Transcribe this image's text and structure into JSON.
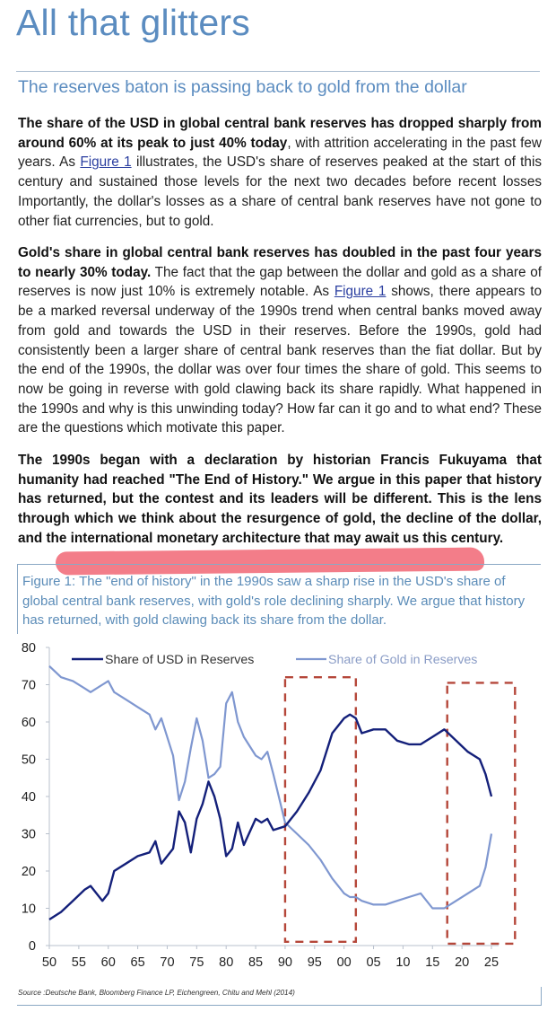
{
  "document": {
    "title": "All that glitters",
    "subtitle": "The reserves baton is passing back to gold from the dollar",
    "paragraphs": [
      {
        "bold_lead": "The share of the USD in global central bank reserves has dropped sharply from around 60% at its peak to just 40% today",
        "text_before_link": ", with attrition accelerating in the past few years. As ",
        "link": "Figure 1",
        "text_after_link": " illustrates, the USD's share of reserves peaked at the start of this century and sustained those levels for the next two decades before recent losses Importantly, the dollar's losses as a share of central bank reserves have not gone to other fiat currencies, but to gold."
      },
      {
        "bold_lead": "Gold's share in global central bank reserves has doubled in the past four years to nearly 30% today.",
        "text_before_link": " The fact that the gap between the dollar and gold as a share of reserves is now just 10% is extremely notable. As ",
        "link": "Figure 1",
        "text_after_link": " shows, there appears to be a marked reversal underway of the 1990s trend when central banks moved away from gold and towards the USD in their reserves. Before the 1990s, gold had consistently been a larger share of central bank reserves than the fiat dollar. But by the end of the 1990s, the dollar was over four times the share of gold. This seems to now be going in reverse with gold clawing back its share rapidly. What happened in the 1990s and why is this unwinding today? How far can it go and to what end? These are the questions which motivate this paper."
      },
      {
        "bold_text": "The 1990s began with a declaration by historian Francis Fukuyama that humanity had reached \"The End of History.\" We argue in this paper that history has returned, but the contest and its leaders will be different. This is the lens through which we think about the resurgence of gold, the decline of the dollar, and the international monetary architecture that may await us this century."
      }
    ],
    "figure_caption": "Figure 1: The \"end of history\" in the 1990s saw a sharp rise in the USD's share of global central bank reserves, with gold's role declining sharply. We argue that history has returned, with gold clawing back its share from the dollar.",
    "source": "Source :Deutsche Bank, Bloomberg Finance LP, Eichengreen, Chitu and Mehl (2014)",
    "colors": {
      "title_blue": "#5b8cc0",
      "usd_line": "#14207a",
      "gold_line": "#7f97d0",
      "dashed_box": "#b5473a",
      "highlight": "#f0606f"
    }
  },
  "chart_data": {
    "type": "line",
    "title": "",
    "xlabel": "",
    "ylabel": "",
    "ylim": [
      0,
      80
    ],
    "xlim": [
      1950,
      2025
    ],
    "y_ticks": [
      "0",
      "10",
      "20",
      "30",
      "40",
      "50",
      "60",
      "70",
      "80"
    ],
    "x_ticks": [
      "50",
      "55",
      "60",
      "65",
      "70",
      "75",
      "80",
      "85",
      "90",
      "95",
      "00",
      "05",
      "10",
      "15",
      "20",
      "25"
    ],
    "grid": false,
    "legend_position": "top, inside",
    "x": [
      1950,
      1952,
      1954,
      1956,
      1957,
      1959,
      1960,
      1961,
      1963,
      1965,
      1967,
      1968,
      1969,
      1971,
      1972,
      1973,
      1974,
      1975,
      1976,
      1977,
      1978,
      1979,
      1980,
      1981,
      1982,
      1983,
      1985,
      1986,
      1987,
      1988,
      1990,
      1992,
      1994,
      1996,
      1998,
      2000,
      2001,
      2002,
      2003,
      2005,
      2007,
      2009,
      2011,
      2013,
      2015,
      2017,
      2019,
      2021,
      2023,
      2024,
      2025
    ],
    "series": [
      {
        "name": "Share of USD in Reserves",
        "values": [
          7,
          9,
          12,
          15,
          16,
          12,
          14,
          20,
          22,
          24,
          25,
          28,
          22,
          26,
          36,
          33,
          25,
          34,
          38,
          44,
          40,
          34,
          24,
          26,
          33,
          27,
          34,
          33,
          34,
          31,
          32,
          36,
          41,
          47,
          57,
          61,
          62,
          61,
          57,
          58,
          58,
          55,
          54,
          54,
          56,
          58,
          55,
          52,
          50,
          46,
          40
        ]
      },
      {
        "name": "Share of Gold in Reserves",
        "values": [
          75,
          72,
          71,
          69,
          68,
          70,
          71,
          68,
          66,
          64,
          62,
          58,
          61,
          51,
          39,
          44,
          53,
          61,
          55,
          45,
          46,
          48,
          65,
          68,
          60,
          56,
          51,
          50,
          52,
          46,
          33,
          30,
          27,
          23,
          18,
          14,
          13,
          13,
          12,
          11,
          11,
          12,
          13,
          14,
          10,
          10,
          12,
          14,
          16,
          21,
          30
        ]
      }
    ],
    "annotations": [
      {
        "type": "dashed_box",
        "x_range": [
          1990,
          2002
        ],
        "y_range": [
          1,
          72
        ]
      },
      {
        "type": "dashed_box",
        "x_range": [
          2017.5,
          2029
        ],
        "y_range": [
          0.5,
          70.5
        ]
      }
    ]
  }
}
